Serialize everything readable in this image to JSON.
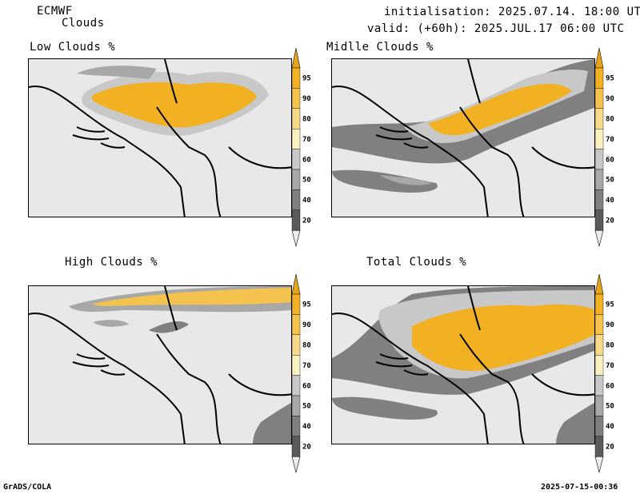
{
  "header": {
    "model": "ECMWF",
    "product": "Clouds",
    "init_line": "initialisation: 2025.07.14. 18:00 UTC",
    "valid_line": "valid: (+60h): 2025.JUL.17 06:00 UTC"
  },
  "panels": [
    {
      "title": "Low Clouds %"
    },
    {
      "title": "Midlle Clouds %"
    },
    {
      "title": "High Clouds %"
    },
    {
      "title": "Total Clouds %"
    }
  ],
  "legend": {
    "levels": [
      "95",
      "90",
      "80",
      "70",
      "60",
      "50",
      "40",
      "20"
    ],
    "colors": [
      "#f2b122",
      "#f4c34e",
      "#f7d98a",
      "#fbf0c0",
      "#c8c8c8",
      "#a8a8a8",
      "#808080",
      "#5a5a5a"
    ],
    "top_arrow_color": "#e8a51a",
    "bottom_arrow_color": "#ececec"
  },
  "footer": {
    "left": "GrADS/COLA",
    "right": "2025-07-15-00:36"
  }
}
